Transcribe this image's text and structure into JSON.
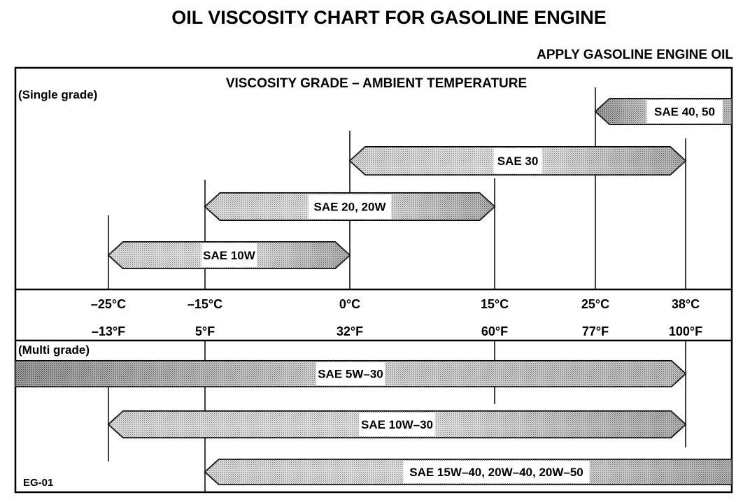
{
  "chart_data": {
    "type": "range-bar",
    "title": "OIL VISCOSITY CHART FOR GASOLINE ENGINE",
    "subtitle": "APPLY GASOLINE ENGINE OIL",
    "header": "VISCOSITY GRADE – AMBIENT TEMPERATURE",
    "code": "EG-01",
    "ticks_c": [
      -25,
      -15,
      0,
      15,
      25,
      38
    ],
    "tick_labels_c": [
      "–25°C",
      "–15°C",
      "0°C",
      "15°C",
      "25°C",
      "38°C"
    ],
    "tick_labels_f": [
      "–13°F",
      "5°F",
      "32°F",
      "60°F",
      "77°F",
      "100°F"
    ],
    "groups": [
      {
        "label": "(Single grade)",
        "series": [
          {
            "name": "SAE 40, 50",
            "min_c": 25,
            "max_c": null
          },
          {
            "name": "SAE 30",
            "min_c": 0,
            "max_c": 38
          },
          {
            "name": "SAE 20, 20W",
            "min_c": -15,
            "max_c": 15
          },
          {
            "name": "SAE 10W",
            "min_c": -25,
            "max_c": 0
          }
        ]
      },
      {
        "label": "(Multi grade)",
        "series": [
          {
            "name": "SAE 5W–30",
            "min_c": null,
            "max_c": 38
          },
          {
            "name": "SAE 10W–30",
            "min_c": -25,
            "max_c": 38
          },
          {
            "name": "SAE 15W–40, 20W–40, 20W–50",
            "min_c": -15,
            "max_c": null
          }
        ]
      }
    ]
  }
}
